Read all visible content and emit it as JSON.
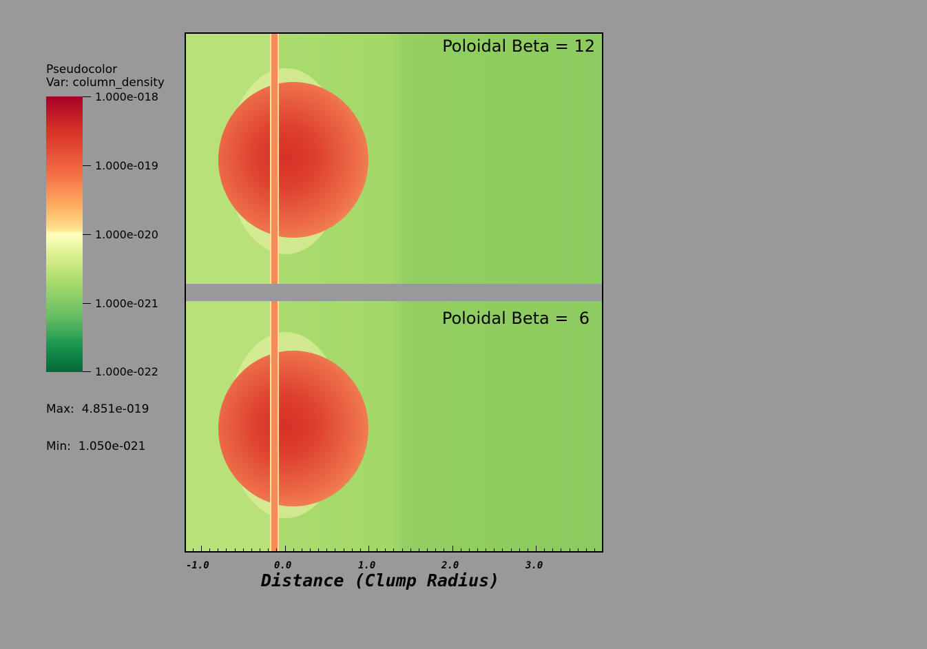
{
  "legend": {
    "plot_type": "Pseudocolor",
    "variable": "Var: column_density",
    "ticks": [
      "1.000e-018",
      "1.000e-019",
      "1.000e-020",
      "1.000e-021",
      "1.000e-022"
    ],
    "max_text": "Max:  4.851e-019",
    "min_text": "Min:  1.050e-021",
    "colormap": [
      "#a50026",
      "#d73027",
      "#f46d43",
      "#fdae61",
      "#fee08b",
      "#ffffbf",
      "#d9ef8b",
      "#a6d96a",
      "#66bd63",
      "#1a9850",
      "#006837"
    ]
  },
  "panels": [
    {
      "label": "Poloidal Beta = 12"
    },
    {
      "label": "Poloidal Beta =  6"
    }
  ],
  "x_axis": {
    "title": "Distance (Clump Radius)",
    "tick_labels": [
      "-1.0",
      "0.0",
      "1.0",
      "2.0",
      "3.0"
    ]
  }
}
